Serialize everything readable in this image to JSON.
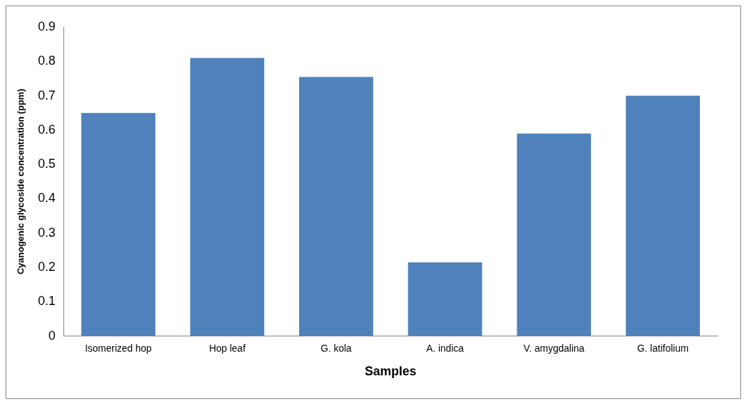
{
  "chart_data": {
    "type": "bar",
    "xlabel": "Samples",
    "ylabel": "Cyanogenic glycoside concentration (ppm)",
    "categories": [
      "Isomerized hop",
      "Hop leaf",
      "G. kola",
      "A. indica",
      "V. amygdalina",
      "G. latifolium"
    ],
    "values": [
      0.65,
      0.81,
      0.755,
      0.215,
      0.59,
      0.7
    ],
    "color": "#4f81bd",
    "ylim": [
      0,
      0.9
    ],
    "yticks": [
      0,
      0.1,
      0.2,
      0.3,
      0.4,
      0.5,
      0.6,
      0.7,
      0.8,
      0.9
    ],
    "grid": false,
    "legend": false
  }
}
